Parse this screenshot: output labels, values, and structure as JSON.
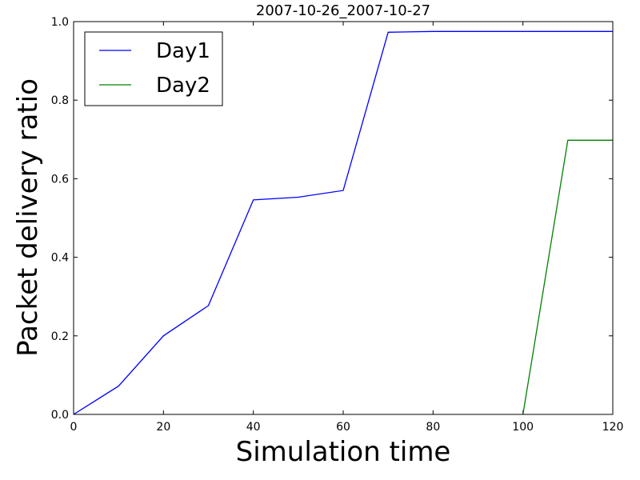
{
  "chart_data": {
    "type": "line",
    "title": "2007-10-26_2007-10-27",
    "xlabel": "Simulation time",
    "ylabel": "Packet delivery ratio",
    "xlim": [
      0,
      120
    ],
    "ylim": [
      0.0,
      1.0
    ],
    "xticks": [
      "0",
      "20",
      "40",
      "60",
      "80",
      "100",
      "120"
    ],
    "yticks": [
      "0.0",
      "0.2",
      "0.4",
      "0.6",
      "0.8",
      "1.0"
    ],
    "grid": false,
    "legend": "top-left",
    "series": [
      {
        "name": "Day1",
        "color": "#0000ff",
        "x": [
          0,
          10,
          20,
          30,
          40,
          50,
          60,
          70,
          80,
          90,
          100,
          110,
          120
        ],
        "y": [
          0.0,
          0.072,
          0.2,
          0.277,
          0.546,
          0.553,
          0.57,
          0.973,
          0.975,
          0.975,
          0.975,
          0.975,
          0.975
        ]
      },
      {
        "name": "Day2",
        "color": "#008000",
        "x": [
          100,
          110,
          120
        ],
        "y": [
          0.0,
          0.698,
          0.698
        ]
      }
    ]
  }
}
